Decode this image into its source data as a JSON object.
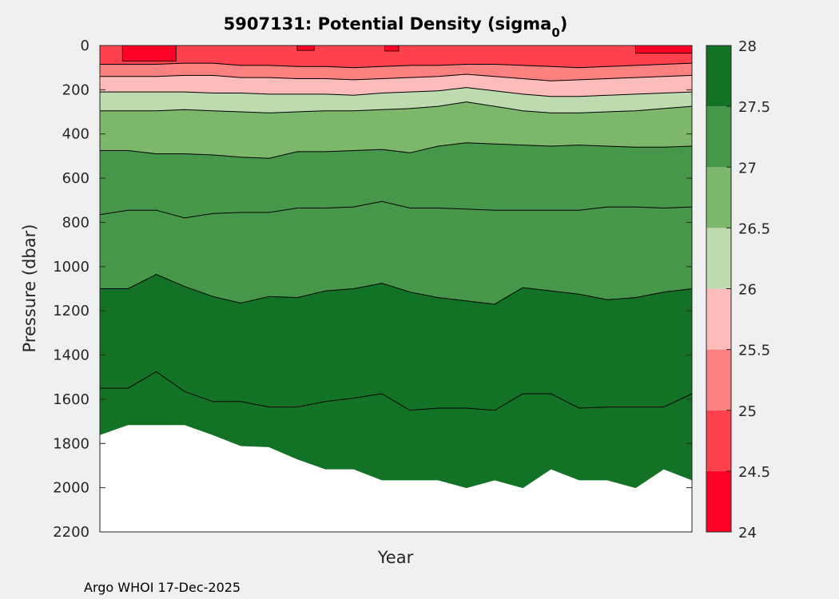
{
  "chart_data": {
    "type": "contourf",
    "title_main": "5907131: Potential Density (sigma",
    "title_sub": "0",
    "title_close": ")",
    "xlabel": "Year",
    "ylabel": "Pressure (dbar)",
    "ylim": [
      0,
      2200
    ],
    "y_direction": "reversed",
    "yticks": [
      0,
      200,
      400,
      600,
      800,
      1000,
      1200,
      1400,
      1600,
      1800,
      2000,
      2200
    ],
    "xticks": [],
    "colorbar": {
      "levels": [
        24,
        24.5,
        25,
        25.5,
        26,
        26.5,
        27,
        27.5,
        28
      ],
      "tick_labels": [
        "24",
        "24.5",
        "25",
        "25.5",
        "26",
        "26.5",
        "27",
        "27.5",
        "28"
      ],
      "colors": [
        "#ff0026",
        "#ff404d",
        "#fb8080",
        "#fcbcba",
        "#bddbaf",
        "#7cb76c",
        "#47974a",
        "#127326"
      ]
    },
    "profile_index": [
      0,
      1,
      2,
      3,
      4,
      5,
      6,
      7,
      8,
      9,
      10,
      11,
      12,
      13,
      14,
      15,
      16,
      17,
      18,
      19,
      20,
      21
    ],
    "max_pressure": [
      1760,
      1715,
      1715,
      1715,
      1760,
      1810,
      1815,
      1870,
      1915,
      1915,
      1965,
      1965,
      1965,
      2000,
      1965,
      2000,
      1915,
      1965,
      1965,
      2000,
      1915,
      1965
    ],
    "series": [
      {
        "name": "25.0",
        "values": [
          85,
          85,
          85,
          80,
          80,
          90,
          90,
          95,
          95,
          100,
          95,
          90,
          90,
          85,
          85,
          90,
          95,
          100,
          95,
          90,
          85,
          80
        ]
      },
      {
        "name": "25.5",
        "values": [
          140,
          140,
          140,
          135,
          135,
          145,
          145,
          150,
          150,
          155,
          150,
          145,
          140,
          130,
          140,
          150,
          160,
          155,
          150,
          145,
          140,
          135
        ]
      },
      {
        "name": "26.0",
        "values": [
          210,
          210,
          210,
          210,
          215,
          215,
          220,
          220,
          220,
          225,
          215,
          210,
          205,
          190,
          205,
          220,
          230,
          230,
          225,
          220,
          215,
          210
        ]
      },
      {
        "name": "26.5",
        "values": [
          295,
          295,
          295,
          290,
          295,
          300,
          305,
          300,
          295,
          295,
          290,
          285,
          275,
          255,
          275,
          295,
          305,
          305,
          300,
          295,
          285,
          275
        ]
      },
      {
        "name": "27.0",
        "values": [
          475,
          475,
          490,
          490,
          495,
          505,
          510,
          480,
          480,
          475,
          470,
          485,
          455,
          440,
          445,
          450,
          455,
          450,
          455,
          460,
          460,
          455
        ]
      },
      {
        "name": "27.25",
        "values": [
          765,
          745,
          745,
          780,
          760,
          755,
          755,
          735,
          735,
          730,
          705,
          735,
          735,
          740,
          745,
          745,
          745,
          745,
          730,
          730,
          735,
          730
        ]
      },
      {
        "name": "27.5",
        "values": [
          1100,
          1100,
          1035,
          1090,
          1135,
          1165,
          1135,
          1140,
          1110,
          1100,
          1075,
          1115,
          1140,
          1155,
          1170,
          1095,
          1110,
          1125,
          1150,
          1140,
          1115,
          1100
        ]
      },
      {
        "name": "27.6",
        "values": [
          1550,
          1550,
          1475,
          1565,
          1610,
          1610,
          1635,
          1635,
          1610,
          1595,
          1575,
          1650,
          1640,
          1640,
          1650,
          1575,
          1575,
          1640,
          1635,
          1635,
          1635,
          1575
        ]
      }
    ],
    "surface_patches": [
      {
        "name": "sigma-24.0-patch",
        "profiles": [
          0.8,
          2.7
        ],
        "pressure": [
          0,
          70
        ]
      },
      {
        "name": "sigma-24.0-patch",
        "profiles": [
          7.0,
          7.6
        ],
        "pressure": [
          0,
          22
        ]
      },
      {
        "name": "sigma-24.0-patch",
        "profiles": [
          10.1,
          10.6
        ],
        "pressure": [
          0,
          25
        ]
      },
      {
        "name": "sigma-24.0-patch",
        "profiles": [
          19.0,
          21.0
        ],
        "pressure": [
          0,
          35
        ]
      }
    ],
    "footer": "Argo WHOI 17-Dec-2025"
  }
}
